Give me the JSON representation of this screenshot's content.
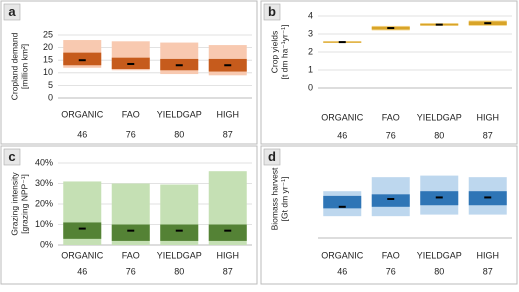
{
  "chart_data": [
    {
      "type": "range",
      "label": "a",
      "ylabel": [
        "Cropland demand",
        "[million km²]"
      ],
      "categories": [
        "ORGANIC",
        "FAO",
        "YIELDGAP",
        "HIGH"
      ],
      "sublabels": [
        46,
        76,
        80,
        87
      ],
      "ylim": [
        0,
        25
      ],
      "yticks": [
        0,
        5,
        10,
        15,
        20,
        25
      ],
      "grid": true,
      "outer": {
        "color": "#f8c9b0",
        "low": [
          12,
          11,
          9.5,
          9
        ],
        "high": [
          23,
          22.5,
          22,
          21
        ]
      },
      "inner": {
        "color": "#c65b1c",
        "low": [
          13,
          11.5,
          11,
          10.5
        ],
        "high": [
          18,
          16,
          15.5,
          15.5
        ]
      },
      "median": {
        "color": "#000000",
        "values": [
          15,
          13.5,
          13,
          13
        ]
      }
    },
    {
      "type": "range",
      "label": "b",
      "ylabel": [
        "Crop yields",
        "[t dm ha⁻¹yr⁻¹]"
      ],
      "categories": [
        "ORGANIC",
        "FAO",
        "YIELDGAP",
        "HIGH"
      ],
      "sublabels": [
        46,
        76,
        80,
        87
      ],
      "ylim": [
        0,
        4
      ],
      "yticks": [
        0,
        1,
        2,
        3,
        4
      ],
      "grid": true,
      "outer": {
        "color": "#f5d78e",
        "low": [
          2.5,
          3.2,
          3.45,
          3.45
        ],
        "high": [
          2.6,
          3.45,
          3.6,
          3.75
        ]
      },
      "inner": {
        "color": "#d8a428",
        "low": [
          2.52,
          3.25,
          3.48,
          3.5
        ],
        "high": [
          2.58,
          3.4,
          3.57,
          3.7
        ]
      },
      "median": {
        "color": "#000000",
        "values": [
          2.55,
          3.33,
          3.52,
          3.6
        ]
      }
    },
    {
      "type": "range",
      "label": "c",
      "ylabel": [
        "Grazing intensity",
        "[grazing NPP⁻¹]"
      ],
      "categories": [
        "ORGANIC",
        "FAO",
        "YIELDGAP",
        "HIGH"
      ],
      "sublabels": [
        46,
        76,
        80,
        87
      ],
      "ylim": [
        0,
        40
      ],
      "yticks": [
        {
          "value": 0,
          "label": "0%"
        },
        {
          "value": 10,
          "label": "10%"
        },
        {
          "value": 20,
          "label": "20%"
        },
        {
          "value": 30,
          "label": "30%"
        },
        {
          "value": 40,
          "label": "40%"
        }
      ],
      "grid": true,
      "outer": {
        "color": "#c5e0b4",
        "low": [
          0,
          0,
          0,
          0
        ],
        "high": [
          31,
          30,
          29.5,
          36
        ]
      },
      "inner": {
        "color": "#548235",
        "low": [
          3,
          2,
          2,
          2
        ],
        "high": [
          11,
          10,
          10,
          10
        ]
      },
      "median": {
        "color": "#000000",
        "values": [
          8,
          7,
          7,
          7
        ]
      }
    },
    {
      "type": "range",
      "label": "d",
      "ylabel": [
        "Biomass harvest",
        "[Gt dm yr⁻¹]"
      ],
      "categories": [
        "ORGANIC",
        "FAO",
        "YIELDGAP",
        "HIGH"
      ],
      "sublabels": [
        46,
        76,
        80,
        87
      ],
      "ylim": [
        0,
        25
      ],
      "grid": false,
      "outer": {
        "color": "#bdd7ee",
        "low": [
          7,
          7,
          7.5,
          7.5
        ],
        "high": [
          15,
          19.5,
          20,
          19.5
        ]
      },
      "inner": {
        "color": "#2e75b6",
        "low": [
          9.5,
          10,
          10.5,
          10.5
        ],
        "high": [
          13.5,
          14,
          15,
          15
        ]
      },
      "median": {
        "color": "#000000",
        "values": [
          10,
          12.5,
          13,
          13
        ]
      }
    }
  ]
}
